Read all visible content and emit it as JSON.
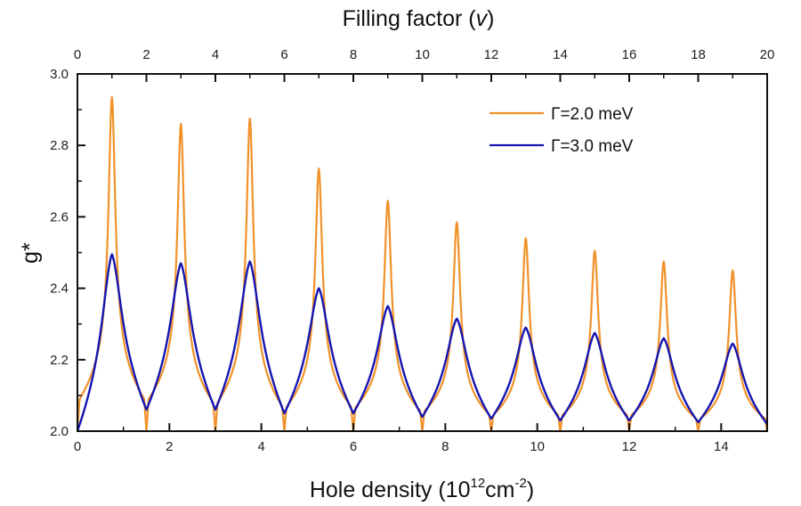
{
  "chart_data": {
    "type": "line",
    "title": "",
    "xlabel": "Hole density",
    "xlabel_unit_base": "10",
    "xlabel_unit_exp": "12",
    "xlabel_unit_mid": "cm",
    "xlabel_unit_exp2": "-2",
    "top_xlabel": "Filling factor (",
    "top_xlabel_symbol": "v",
    "top_xlabel_end": ")",
    "ylabel": "g*",
    "xlim": [
      0,
      15
    ],
    "ylim": [
      2.0,
      3.0
    ],
    "top_xlim": [
      0,
      20
    ],
    "x_ticks": [
      "0",
      "2",
      "4",
      "6",
      "8",
      "10",
      "12",
      "14"
    ],
    "x_tick_values": [
      0,
      2,
      4,
      6,
      8,
      10,
      12,
      14
    ],
    "x_minor_ticks": [
      1,
      3,
      5,
      7,
      9,
      11,
      13,
      15
    ],
    "top_x_ticks": [
      "0",
      "2",
      "4",
      "6",
      "8",
      "10",
      "12",
      "14",
      "16",
      "18",
      "20"
    ],
    "top_x_tick_values": [
      0,
      2,
      4,
      6,
      8,
      10,
      12,
      14,
      16,
      18,
      20
    ],
    "top_x_minor_ticks": [
      1,
      3,
      5,
      7,
      9,
      11,
      13,
      15,
      17,
      19
    ],
    "y_ticks": [
      "2.0",
      "2.2",
      "2.4",
      "2.6",
      "2.8",
      "3.0"
    ],
    "y_tick_values": [
      2.0,
      2.2,
      2.4,
      2.6,
      2.8,
      3.0
    ],
    "y_minor_ticks": [
      2.1,
      2.3,
      2.5,
      2.7,
      2.9
    ],
    "grid": false,
    "legend_position": "top-right",
    "peak_density": [
      0.75,
      2.25,
      3.75,
      5.25,
      6.75,
      8.25,
      9.75,
      11.25,
      12.75,
      14.25
    ],
    "min_density": [
      0,
      1.5,
      3.0,
      4.5,
      6.0,
      7.5,
      9.0,
      10.5,
      12.0,
      13.5,
      15.0
    ],
    "series": [
      {
        "name": "Γ=2.0 meV",
        "color": "#f0922a",
        "peak_values": [
          2.935,
          2.86,
          2.875,
          2.735,
          2.645,
          2.585,
          2.54,
          2.505,
          2.475,
          2.45
        ],
        "min_values": [
          2.0,
          2.0,
          2.0,
          2.0,
          2.0,
          2.0,
          2.0,
          2.0,
          2.0,
          2.0,
          2.0
        ],
        "shoulder_values": [
          2.08,
          2.08,
          2.07,
          2.06,
          2.06,
          2.05,
          2.04,
          2.04,
          2.04,
          2.03,
          2.03
        ],
        "sharpness": "sharp"
      },
      {
        "name": "Γ=3.0 meV",
        "color": "#1515b0",
        "peak_values": [
          2.495,
          2.47,
          2.475,
          2.4,
          2.35,
          2.315,
          2.29,
          2.275,
          2.26,
          2.245
        ],
        "min_values": [
          2.0,
          2.06,
          2.06,
          2.05,
          2.05,
          2.04,
          2.035,
          2.03,
          2.03,
          2.025,
          2.02
        ],
        "sharpness": "broad"
      }
    ]
  }
}
